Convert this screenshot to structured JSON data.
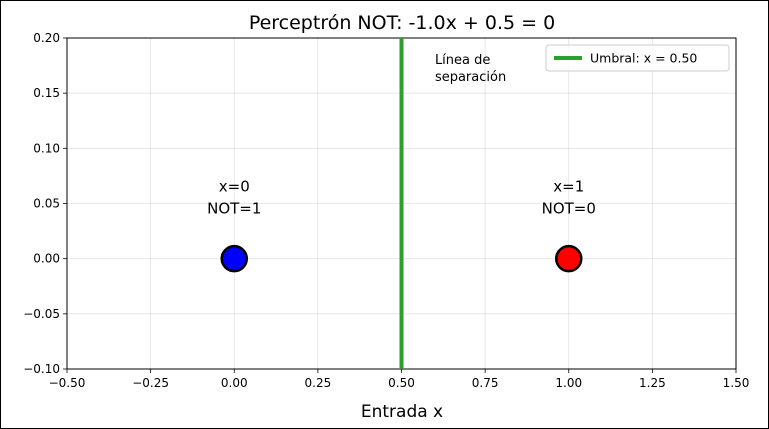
{
  "chart_data": {
    "type": "scatter",
    "title": "Perceptrón NOT: -1.0x + 0.5 = 0",
    "xlabel": "Entrada x",
    "ylabel": "",
    "xlim": [
      -0.5,
      1.5
    ],
    "ylim": [
      -0.1,
      0.2
    ],
    "grid": true,
    "legend_position": "top-right",
    "x_ticks": [
      -0.5,
      -0.25,
      0.0,
      0.25,
      0.5,
      0.75,
      1.0,
      1.25,
      1.5
    ],
    "x_tick_labels": [
      "−0.50",
      "−0.25",
      "0.00",
      "0.25",
      "0.50",
      "0.75",
      "1.00",
      "1.25",
      "1.50"
    ],
    "y_ticks": [
      -0.1,
      -0.05,
      0.0,
      0.05,
      0.1,
      0.15,
      0.2
    ],
    "y_tick_labels": [
      "−0.10",
      "−0.05",
      "0.00",
      "0.05",
      "0.10",
      "0.15",
      "0.20"
    ],
    "points": [
      {
        "x": 0.0,
        "y": 0.0,
        "color": "#0000ff",
        "label_lines": [
          "x=0",
          "NOT=1"
        ]
      },
      {
        "x": 1.0,
        "y": 0.0,
        "color": "#ff0000",
        "label_lines": [
          "x=1",
          "NOT=0"
        ]
      }
    ],
    "threshold": {
      "x": 0.5,
      "color": "#2ca02c",
      "legend": "Umbral: x = 0.50"
    },
    "separation_label": [
      "Línea de",
      "separación"
    ]
  }
}
